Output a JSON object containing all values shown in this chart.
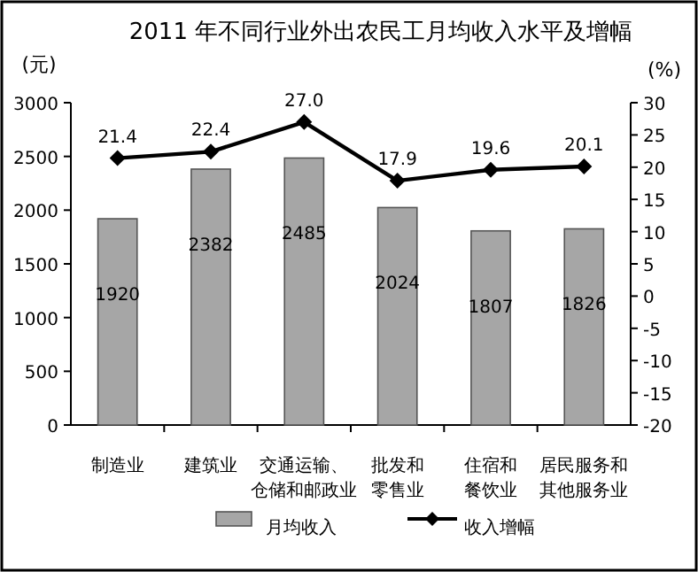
{
  "chart_data": {
    "type": "bar",
    "title": "2011 年不同行业外出农民工月均收入水平及增幅",
    "ylabel": "(元)",
    "y2label": "(%)",
    "categories": [
      "制造业",
      "建筑业",
      "交通运输、仓储和邮政业",
      "批发和零售业",
      "住宿和餐饮业",
      "居民服务和其他服务业"
    ],
    "series": [
      {
        "name": "月均收入",
        "color": "#a6a6a6",
        "values": [
          1920,
          2382,
          2485,
          2024,
          1807,
          1826
        ],
        "value_labels": [
          "1920",
          "2382",
          "2485",
          "2024",
          "1807",
          "1826"
        ]
      },
      {
        "name": "收入增幅",
        "type": "line",
        "axis": "y2",
        "color": "#000000",
        "marker": "diamond",
        "values": [
          21.4,
          22.4,
          27.0,
          17.9,
          19.6,
          20.1
        ],
        "value_labels": [
          "21.4",
          "22.4",
          "27.0",
          "17.9",
          "19.6",
          "20.1"
        ]
      }
    ],
    "ylim": [
      0,
      3000
    ],
    "yticks": [
      0,
      500,
      1000,
      1500,
      2000,
      2500,
      3000
    ],
    "y2lim": [
      -20,
      30
    ],
    "y2ticks": [
      -20,
      -15,
      -10,
      -5,
      0,
      5,
      10,
      15,
      20,
      25,
      30
    ],
    "legend": "bottom",
    "grid": false
  }
}
